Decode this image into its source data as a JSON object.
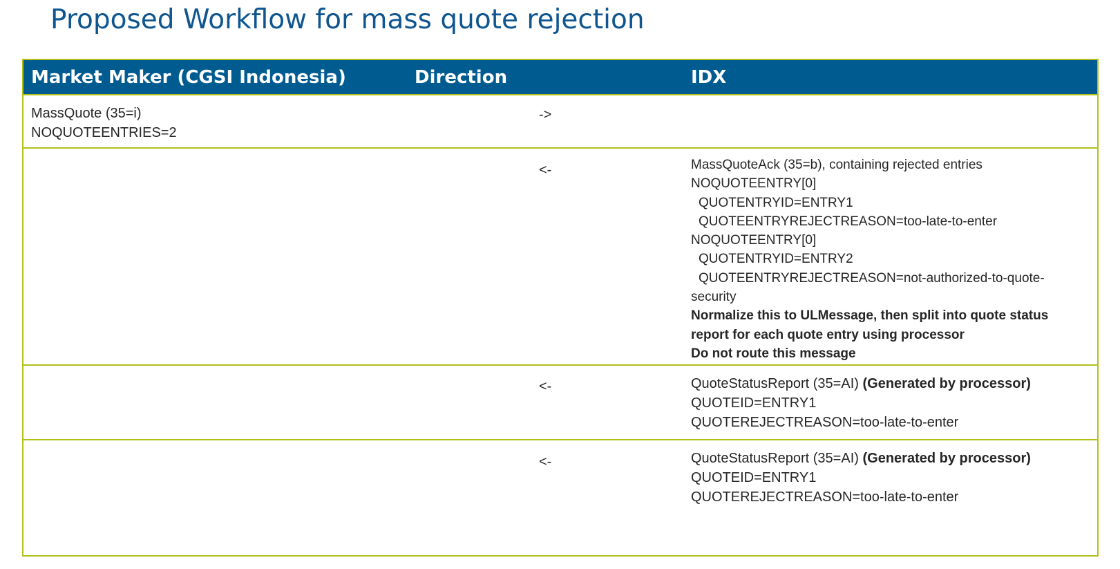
{
  "title": "Proposed Workflow for mass quote rejection",
  "colors": {
    "title": "#0f5690",
    "header_bg": "#005b91",
    "header_text": "#ffffff",
    "border": "#b3c11a",
    "body_text": "#262626"
  },
  "headers": {
    "market_maker": "Market Maker (CGSI Indonesia)",
    "direction": "Direction",
    "idx": "IDX"
  },
  "rows": [
    {
      "market_maker": [
        "MassQuote (35=i)",
        "NOQUOTEENTRIES=2"
      ],
      "direction": "->",
      "idx": []
    },
    {
      "market_maker": [],
      "direction": "<-",
      "idx": [
        "MassQuoteAck (35=b), containing rejected entries",
        "NOQUOTEENTRY[0]",
        "QUOTENTRYID=ENTRY1",
        "QUOTEENTRYREJECTREASON=too-late-to-enter",
        "NOQUOTEENTRY[0]",
        "QUOTENTRYID=ENTRY2",
        "QUOTEENTRYREJECTREASON=not-authorized-to-quote-",
        "security",
        "Normalize this to ULMessage, then split into quote status",
        "report for each quote entry using processor",
        "Do not route this message"
      ]
    },
    {
      "market_maker": [],
      "direction": "<-",
      "idx": [
        "QuoteStatusReport (35=AI)",
        "(Generated by processor)",
        "QUOTEID=ENTRY1",
        "QUOTEREJECTREASON=too-late-to-enter"
      ]
    },
    {
      "market_maker": [],
      "direction": "<-",
      "idx": [
        "QuoteStatusReport (35=AI)",
        "(Generated by processor)",
        "QUOTEID=ENTRY1",
        "QUOTEREJECTREASON=too-late-to-enter"
      ]
    }
  ]
}
